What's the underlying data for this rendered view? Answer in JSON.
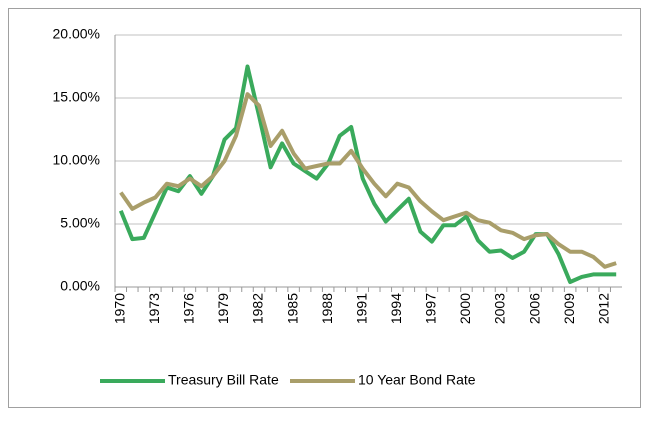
{
  "chart_data": {
    "type": "line",
    "categories": [
      "1970",
      null,
      null,
      "1973",
      null,
      null,
      "1976",
      null,
      null,
      "1979",
      null,
      null,
      "1982",
      null,
      null,
      "1985",
      null,
      null,
      "1988",
      null,
      null,
      "1991",
      null,
      null,
      "1994",
      null,
      null,
      "1997",
      null,
      null,
      "2000",
      null,
      null,
      "2003",
      null,
      null,
      "2006",
      null,
      null,
      "2009",
      null,
      null,
      "2012",
      null
    ],
    "series": [
      {
        "name": "Treasury Bill Rate",
        "color": "#3aaa5c",
        "values": [
          6.05,
          3.8,
          3.9,
          5.9,
          7.9,
          7.6,
          8.8,
          7.4,
          8.8,
          11.7,
          12.6,
          17.5,
          13.6,
          9.5,
          11.4,
          9.8,
          9.2,
          8.6,
          9.8,
          12.0,
          12.7,
          8.6,
          6.6,
          5.2,
          6.1,
          7.0,
          4.4,
          3.6,
          4.9,
          4.9,
          5.6,
          3.7,
          2.8,
          2.9,
          2.3,
          2.8,
          4.2,
          4.2,
          2.6,
          0.4,
          0.8,
          1.0,
          1.0,
          1.0
        ]
      },
      {
        "name": "10 Year Bond Rate",
        "color": "#a99e6a",
        "values": [
          7.5,
          6.2,
          6.7,
          7.1,
          8.2,
          8.0,
          8.6,
          8.0,
          8.8,
          10.0,
          12.0,
          15.3,
          14.4,
          11.2,
          12.4,
          10.6,
          9.4,
          9.6,
          9.8,
          9.8,
          10.8,
          9.4,
          8.2,
          7.2,
          8.2,
          7.9,
          6.8,
          6.0,
          5.3,
          5.6,
          5.9,
          5.3,
          5.1,
          4.5,
          4.3,
          3.8,
          4.1,
          4.2,
          3.4,
          2.8,
          2.8,
          2.4,
          1.6,
          1.9
        ]
      }
    ],
    "ylim": [
      0,
      20
    ],
    "yticks": [
      {
        "value": 0,
        "label": "0.00%"
      },
      {
        "value": 5,
        "label": "5.00%"
      },
      {
        "value": 10,
        "label": "10.00%"
      },
      {
        "value": 15,
        "label": "15.00%"
      },
      {
        "value": 20,
        "label": "20.00%"
      }
    ],
    "grid": true,
    "legend": "bottom"
  }
}
